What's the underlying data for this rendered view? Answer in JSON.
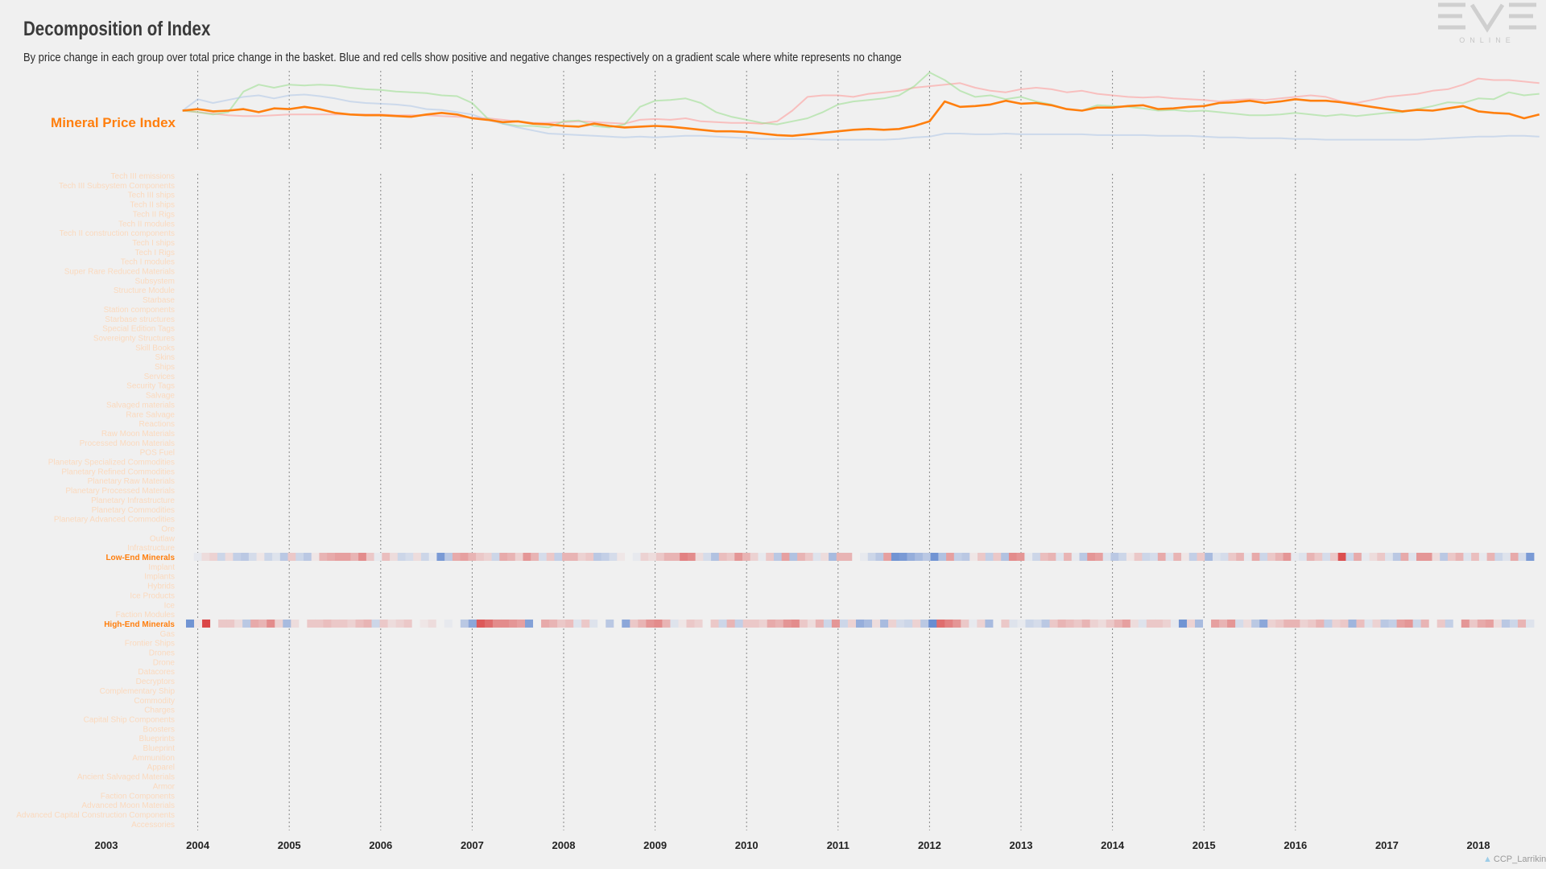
{
  "header": {
    "title": "Decomposition of Index",
    "subtitle": "By price change in each group over total price change in the basket. Blue and red cells show positive and negative changes respectively on a gradient scale where white represents no change"
  },
  "logo": {
    "text": "EVE",
    "subtext": "ONLINE"
  },
  "credit": "CCP_Larrikin",
  "colors": {
    "index_line": "#ff7f0e",
    "orange_label": "#ff7f0e",
    "faded_label": "#fbd9bd",
    "blue_line": "#aec7e8",
    "green_line": "#98df8a",
    "red_line": "#ff9896",
    "positive": "#3b6cc6",
    "negative": "#d62728",
    "vline": "#888888",
    "axis_text": "#222222"
  },
  "chart_data": [
    {
      "type": "line",
      "label": "Mineral Price Index",
      "x": [
        "2003-11",
        "2004-01",
        "2004-03",
        "2004-05",
        "2004-07",
        "2004-09",
        "2004-11",
        "2005-01",
        "2005-03",
        "2005-05",
        "2005-07",
        "2005-09",
        "2005-11",
        "2006-01",
        "2006-03",
        "2006-05",
        "2006-07",
        "2006-09",
        "2006-11",
        "2007-01",
        "2007-03",
        "2007-05",
        "2007-07",
        "2007-09",
        "2007-11",
        "2008-01",
        "2008-03",
        "2008-05",
        "2008-07",
        "2008-09",
        "2008-11",
        "2009-01",
        "2009-03",
        "2009-05",
        "2009-07",
        "2009-09",
        "2009-11",
        "2010-01",
        "2010-03",
        "2010-05",
        "2010-07",
        "2010-09",
        "2010-11",
        "2011-01",
        "2011-03",
        "2011-05",
        "2011-07",
        "2011-09",
        "2011-11",
        "2012-01",
        "2012-03",
        "2012-05",
        "2012-07",
        "2012-09",
        "2012-11",
        "2013-01",
        "2013-03",
        "2013-05",
        "2013-07",
        "2013-09",
        "2013-11",
        "2014-01",
        "2014-03",
        "2014-05",
        "2014-07",
        "2014-09",
        "2014-11",
        "2015-01",
        "2015-03",
        "2015-05",
        "2015-07",
        "2015-09",
        "2015-11",
        "2016-01",
        "2016-03",
        "2016-05",
        "2016-07",
        "2016-09",
        "2016-11",
        "2017-01",
        "2017-03",
        "2017-05",
        "2017-07",
        "2017-09",
        "2017-11",
        "2018-01",
        "2018-03",
        "2018-05",
        "2018-07",
        "2018-09"
      ],
      "series": [
        {
          "values": [
            0.5,
            0.52,
            0.49,
            0.5,
            0.52,
            0.48,
            0.53,
            0.52,
            0.55,
            0.52,
            0.47,
            0.45,
            0.44,
            0.44,
            0.43,
            0.42,
            0.45,
            0.47,
            0.45,
            0.4,
            0.38,
            0.35,
            0.36,
            0.33,
            0.32,
            0.3,
            0.29,
            0.33,
            0.3,
            0.28,
            0.29,
            0.3,
            0.29,
            0.27,
            0.25,
            0.23,
            0.23,
            0.22,
            0.2,
            0.18,
            0.17,
            0.19,
            0.21,
            0.23,
            0.25,
            0.26,
            0.25,
            0.26,
            0.3,
            0.36,
            0.62,
            0.55,
            0.56,
            0.58,
            0.63,
            0.59,
            0.6,
            0.57,
            0.52,
            0.5,
            0.54,
            0.54,
            0.56,
            0.57,
            0.52,
            0.53,
            0.55,
            0.56,
            0.6,
            0.61,
            0.63,
            0.6,
            0.62,
            0.65,
            0.63,
            0.63,
            0.61,
            0.58,
            0.55,
            0.52,
            0.49,
            0.51,
            0.5,
            0.53,
            0.56,
            0.49,
            0.47,
            0.46,
            0.4,
            0.45
          ]
        },
        {
          "values": [
            0.5,
            0.65,
            0.6,
            0.64,
            0.68,
            0.7,
            0.66,
            0.7,
            0.71,
            0.69,
            0.66,
            0.62,
            0.6,
            0.59,
            0.58,
            0.56,
            0.52,
            0.51,
            0.48,
            0.45,
            0.38,
            0.33,
            0.28,
            0.24,
            0.2,
            0.19,
            0.18,
            0.17,
            0.16,
            0.15,
            0.16,
            0.15,
            0.16,
            0.17,
            0.17,
            0.16,
            0.15,
            0.14,
            0.13,
            0.13,
            0.13,
            0.13,
            0.12,
            0.12,
            0.12,
            0.12,
            0.12,
            0.13,
            0.15,
            0.16,
            0.2,
            0.2,
            0.19,
            0.19,
            0.2,
            0.19,
            0.19,
            0.19,
            0.19,
            0.19,
            0.18,
            0.18,
            0.18,
            0.18,
            0.17,
            0.17,
            0.17,
            0.16,
            0.15,
            0.15,
            0.14,
            0.14,
            0.14,
            0.13,
            0.13,
            0.12,
            0.12,
            0.12,
            0.12,
            0.12,
            0.12,
            0.12,
            0.13,
            0.14,
            0.15,
            0.16,
            0.16,
            0.17,
            0.17,
            0.16
          ]
        },
        {
          "values": [
            0.5,
            0.48,
            0.45,
            0.48,
            0.75,
            0.84,
            0.8,
            0.84,
            0.83,
            0.84,
            0.83,
            0.8,
            0.78,
            0.77,
            0.75,
            0.74,
            0.73,
            0.7,
            0.69,
            0.6,
            0.4,
            0.33,
            0.3,
            0.3,
            0.28,
            0.36,
            0.37,
            0.3,
            0.28,
            0.32,
            0.55,
            0.63,
            0.64,
            0.66,
            0.6,
            0.48,
            0.42,
            0.38,
            0.34,
            0.32,
            0.36,
            0.4,
            0.48,
            0.58,
            0.62,
            0.64,
            0.66,
            0.7,
            0.82,
            1.0,
            0.9,
            0.76,
            0.68,
            0.7,
            0.65,
            0.68,
            0.62,
            0.58,
            0.52,
            0.5,
            0.57,
            0.56,
            0.55,
            0.53,
            0.5,
            0.51,
            0.49,
            0.5,
            0.48,
            0.46,
            0.44,
            0.44,
            0.45,
            0.47,
            0.45,
            0.43,
            0.45,
            0.43,
            0.45,
            0.47,
            0.48,
            0.52,
            0.56,
            0.61,
            0.6,
            0.66,
            0.65,
            0.74,
            0.7,
            0.72
          ]
        },
        {
          "values": [
            0.5,
            0.48,
            0.46,
            0.44,
            0.43,
            0.43,
            0.44,
            0.45,
            0.45,
            0.45,
            0.45,
            0.45,
            0.45,
            0.45,
            0.44,
            0.44,
            0.44,
            0.43,
            0.42,
            0.41,
            0.4,
            0.38,
            0.36,
            0.34,
            0.34,
            0.35,
            0.36,
            0.35,
            0.34,
            0.33,
            0.38,
            0.39,
            0.38,
            0.4,
            0.36,
            0.35,
            0.34,
            0.34,
            0.33,
            0.36,
            0.5,
            0.68,
            0.7,
            0.7,
            0.68,
            0.72,
            0.74,
            0.76,
            0.8,
            0.82,
            0.84,
            0.86,
            0.8,
            0.76,
            0.74,
            0.78,
            0.8,
            0.78,
            0.74,
            0.76,
            0.72,
            0.7,
            0.68,
            0.67,
            0.68,
            0.66,
            0.65,
            0.64,
            0.62,
            0.64,
            0.65,
            0.64,
            0.66,
            0.68,
            0.7,
            0.68,
            0.62,
            0.6,
            0.64,
            0.68,
            0.7,
            0.72,
            0.76,
            0.78,
            0.84,
            0.92,
            0.9,
            0.9,
            0.88,
            0.86
          ]
        }
      ]
    },
    {
      "type": "heatmap",
      "xlabel": "",
      "x_ticks": [
        "2003",
        "2004",
        "2005",
        "2006",
        "2007",
        "2008",
        "2009",
        "2010",
        "2011",
        "2012",
        "2013",
        "2014",
        "2015",
        "2016",
        "2017",
        "2018"
      ],
      "categories": [
        "Tech III emissions",
        "Tech III Subsystem Components",
        "Tech III ships",
        "Tech II ships",
        "Tech II Rigs",
        "Tech II modules",
        "Tech II construction components",
        "Tech I ships",
        "Tech I Rigs",
        "Tech I modules",
        "Super Rare Reduced Materials",
        "Subsystem",
        "Structure Module",
        "Starbase",
        "Station components",
        "Starbase structures",
        "Special Edition Tags",
        "Sovereignty Structures",
        "Skill Books",
        "Skins",
        "Ships",
        "Services",
        "Security Tags",
        "Salvage",
        "Salvaged materials",
        "Rare Salvage",
        "Reactions",
        "Raw Moon Materials",
        "Processed Moon Materials",
        "POS Fuel",
        "Planetary Specialized Commodities",
        "Planetary Refined Commodities",
        "Planetary Raw Materials",
        "Planetary Processed Materials",
        "Planetary Infrastructure",
        "Planetary Commodities",
        "Planetary Advanced Commodities",
        "Ore",
        "Outlaw",
        "Infrastructure",
        "Low-End Minerals",
        "Implant",
        "Implants",
        "Hybrids",
        "Ice Products",
        "Ice",
        "Faction Modules",
        "High-End Minerals",
        "Gas",
        "Frontier Ships",
        "Drones",
        "Drone",
        "Datacores",
        "Decryptors",
        "Complementary Ship",
        "Commodity",
        "Charges",
        "Capital Ship Components",
        "Boosters",
        "Blueprints",
        "Blueprint",
        "Ammunition",
        "Apparel",
        "Ancient Salvaged Materials",
        "Armor",
        "Faction Components",
        "Advanced Moon Materials",
        "Advanced Capital Construction Components",
        "Accessories"
      ],
      "highlighted": [
        "Low-End Minerals",
        "High-End Minerals"
      ],
      "rows": {
        "Low-End Minerals": [
          0,
          0.05,
          -0.1,
          -0.15,
          0.2,
          -0.1,
          0.25,
          0.3,
          0.15,
          -0.05,
          0.2,
          0.1,
          0.3,
          -0.2,
          0.2,
          0.3,
          -0.05,
          -0.3,
          -0.35,
          -0.4,
          -0.4,
          -0.3,
          -0.5,
          -0.2,
          0.05,
          -0.25,
          -0.1,
          0.2,
          0.15,
          -0.1,
          0.2,
          0.05,
          0.65,
          0.3,
          -0.35,
          -0.4,
          -0.3,
          -0.2,
          -0.15,
          0.2,
          -0.35,
          -0.3,
          -0.15,
          -0.45,
          -0.3,
          0.15,
          -0.2,
          0.25,
          -0.3,
          -0.3,
          -0.15,
          -0.2,
          0.3,
          0.25,
          0.15,
          -0.05,
          0,
          0.05,
          -0.15,
          -0.1,
          -0.2,
          -0.3,
          -0.3,
          -0.55,
          -0.5,
          -0.1,
          0.15,
          0.35,
          -0.25,
          -0.2,
          -0.45,
          -0.3,
          -0.15,
          0.05,
          -0.2,
          0.3,
          -0.4,
          0.35,
          -0.3,
          -0.2,
          0.1,
          -0.1,
          0.4,
          -0.3,
          -0.3,
          0,
          0.05,
          0.2,
          0.3,
          -0.4,
          0.7,
          0.65,
          0.5,
          0.4,
          0.3,
          0.7,
          0.35,
          -0.4,
          0.25,
          0.3,
          -0.05,
          -0.2,
          0.25,
          -0.2,
          0.35,
          -0.5,
          -0.45,
          0.05,
          0.2,
          -0.25,
          -0.3,
          0.1,
          -0.3,
          0.05,
          0.3,
          -0.45,
          -0.4,
          0.1,
          0.3,
          0.2,
          -0.05,
          -0.2,
          0.2,
          0.15,
          -0.35,
          0.1,
          -0.3,
          -0.05,
          0.25,
          -0.2,
          0.4,
          0.1,
          0.15,
          -0.2,
          -0.3,
          0.05,
          -0.35,
          0.2,
          -0.2,
          -0.3,
          -0.45,
          0.05,
          0.1,
          -0.3,
          -0.2,
          0.15,
          -0.2,
          -0.8,
          0.2,
          -0.35,
          0.05,
          -0.1,
          -0.2,
          0.1,
          0.3,
          -0.35,
          0.1,
          -0.45,
          -0.45,
          -0.1,
          0.3,
          -0.2,
          -0.3,
          0.1,
          -0.25,
          0.05,
          -0.3,
          0.2,
          0.1,
          -0.35,
          0.15,
          0.65
        ],
        "High-End Minerals": [
          0.7,
          -0.05,
          -0.85,
          0,
          -0.2,
          -0.2,
          -0.1,
          0.3,
          -0.35,
          -0.3,
          -0.5,
          -0.15,
          0.4,
          -0.1,
          0,
          -0.2,
          -0.2,
          -0.25,
          -0.2,
          -0.2,
          -0.15,
          -0.25,
          -0.3,
          0.2,
          -0.2,
          -0.1,
          -0.15,
          -0.2,
          0,
          -0.05,
          -0.1,
          0,
          0.05,
          0,
          0.3,
          0.55,
          -0.75,
          -0.65,
          -0.5,
          -0.5,
          -0.45,
          -0.4,
          0.6,
          0,
          -0.35,
          -0.3,
          -0.2,
          -0.25,
          0.1,
          -0.2,
          0.1,
          0,
          0.3,
          0,
          0.55,
          -0.2,
          -0.3,
          -0.45,
          -0.5,
          -0.3,
          0.1,
          -0.05,
          -0.2,
          -0.15,
          0,
          -0.2,
          0.2,
          -0.3,
          0.25,
          -0.2,
          -0.2,
          -0.15,
          -0.35,
          -0.3,
          -0.45,
          -0.5,
          -0.2,
          -0.1,
          -0.3,
          0.2,
          -0.45,
          0.2,
          -0.15,
          0.5,
          0.4,
          -0.1,
          0.4,
          -0.15,
          0.15,
          0.2,
          -0.15,
          0.3,
          0.75,
          -0.65,
          -0.55,
          -0.45,
          -0.2,
          0.05,
          -0.15,
          0.4,
          0,
          -0.2,
          0.1,
          0.05,
          0.2,
          0.15,
          0.3,
          -0.2,
          -0.3,
          -0.25,
          -0.2,
          -0.3,
          -0.15,
          -0.1,
          -0.2,
          -0.3,
          -0.4,
          -0.1,
          0.1,
          -0.2,
          -0.2,
          -0.15,
          0.05,
          0.7,
          -0.15,
          0.4,
          0,
          -0.4,
          -0.3,
          -0.45,
          0.15,
          -0.1,
          0.3,
          0.55,
          -0.15,
          -0.2,
          -0.3,
          -0.3,
          -0.15,
          -0.2,
          -0.3,
          0.25,
          -0.15,
          -0.2,
          0.45,
          -0.25,
          0.1,
          -0.15,
          0.3,
          0.25,
          -0.4,
          -0.45,
          0.2,
          -0.3,
          0,
          -0.2,
          0.25,
          0,
          -0.45,
          -0.2,
          -0.35,
          -0.4,
          -0.1,
          0.3,
          0.2,
          -0.3,
          0.1
        ]
      }
    }
  ]
}
